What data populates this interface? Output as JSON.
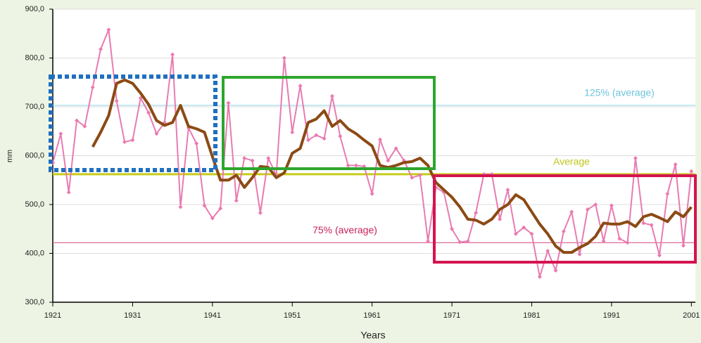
{
  "chart_data": {
    "type": "line",
    "x_label": "Years",
    "y_label": "mm",
    "xlim": [
      1921,
      2001.5
    ],
    "ylim": [
      300,
      900
    ],
    "xticks": [
      1921,
      1931,
      1941,
      1951,
      1961,
      1971,
      1981,
      1991,
      2001
    ],
    "yticks": [
      {
        "value": 300,
        "label": "300,0"
      },
      {
        "value": 400,
        "label": "400,0"
      },
      {
        "value": 500,
        "label": "500,0"
      },
      {
        "value": 600,
        "label": "600,0"
      },
      {
        "value": 700,
        "label": "700,0"
      },
      {
        "value": 800,
        "label": "800,0"
      },
      {
        "value": 900,
        "label": "900,0"
      }
    ],
    "grid": true,
    "reference_lines": [
      {
        "label": "125% (average)",
        "value": 703,
        "color": "#8fd0e0",
        "text_color": "#6cc4dc"
      },
      {
        "label": "Average",
        "value": 562,
        "color": "#c8cc1a",
        "text_color": "#c0c41a"
      },
      {
        "label": "75% (average)",
        "value": 422,
        "color": "#d6457a",
        "text_color": "#c8205a"
      }
    ],
    "series": [
      {
        "color": "#e97bb1",
        "markers": true,
        "x": [
          1921,
          1922,
          1923,
          1924,
          1925,
          1926,
          1927,
          1928,
          1929,
          1930,
          1931,
          1932,
          1933,
          1934,
          1935,
          1936,
          1937,
          1938,
          1939,
          1940,
          1941,
          1942,
          1943,
          1944,
          1945,
          1946,
          1947,
          1948,
          1949,
          1950,
          1951,
          1952,
          1953,
          1954,
          1955,
          1956,
          1957,
          1958,
          1959,
          1960,
          1961,
          1962,
          1963,
          1964,
          1965,
          1966,
          1967,
          1968,
          1969,
          1970,
          1971,
          1972,
          1973,
          1974,
          1975,
          1976,
          1977,
          1978,
          1979,
          1980,
          1981,
          1982,
          1983,
          1984,
          1985,
          1986,
          1987,
          1988,
          1989,
          1990,
          1991,
          1992,
          1993,
          1994,
          1995,
          1996,
          1997,
          1998,
          1999,
          2000,
          2001
        ],
        "values": [
          585,
          645,
          525,
          672,
          660,
          740,
          818,
          858,
          712,
          628,
          632,
          718,
          688,
          645,
          668,
          807,
          495,
          657,
          625,
          498,
          472,
          492,
          708,
          508,
          595,
          590,
          483,
          595,
          560,
          800,
          648,
          743,
          632,
          642,
          635,
          722,
          640,
          580,
          580,
          578,
          522,
          633,
          590,
          615,
          590,
          555,
          560,
          425,
          535,
          525,
          450,
          423,
          425,
          483,
          562,
          562,
          470,
          530,
          440,
          453,
          440,
          352,
          405,
          365,
          445,
          485,
          398,
          490,
          500,
          425,
          498,
          430,
          422,
          595,
          462,
          458,
          396,
          522,
          582,
          416,
          568
        ]
      },
      {
        "color": "#8b4a14",
        "markers": false,
        "x": [
          1926,
          1927,
          1928,
          1929,
          1930,
          1931,
          1932,
          1933,
          1934,
          1935,
          1936,
          1937,
          1938,
          1939,
          1940,
          1941,
          1942,
          1943,
          1944,
          1945,
          1946,
          1947,
          1948,
          1949,
          1950,
          1951,
          1952,
          1953,
          1954,
          1955,
          1956,
          1957,
          1958,
          1959,
          1960,
          1961,
          1962,
          1963,
          1964,
          1965,
          1966,
          1967,
          1968,
          1969,
          1970,
          1971,
          1972,
          1973,
          1974,
          1975,
          1976,
          1977,
          1978,
          1979,
          1980,
          1981,
          1982,
          1983,
          1984,
          1985,
          1986,
          1987,
          1988,
          1989,
          1990,
          1991,
          1992,
          1993,
          1994,
          1995,
          1996,
          1997,
          1998,
          1999,
          2000,
          2001
        ],
        "values": [
          618,
          648,
          682,
          748,
          755,
          748,
          728,
          705,
          672,
          662,
          668,
          703,
          660,
          655,
          648,
          598,
          550,
          550,
          560,
          535,
          555,
          578,
          576,
          555,
          565,
          605,
          615,
          668,
          675,
          692,
          660,
          672,
          655,
          645,
          632,
          620,
          580,
          576,
          580,
          586,
          588,
          595,
          580,
          545,
          530,
          515,
          495,
          470,
          468,
          460,
          470,
          490,
          500,
          520,
          510,
          485,
          460,
          440,
          415,
          402,
          402,
          412,
          420,
          435,
          462,
          460,
          460,
          465,
          455,
          475,
          480,
          473,
          465,
          485,
          475,
          495
        ]
      }
    ]
  }
}
